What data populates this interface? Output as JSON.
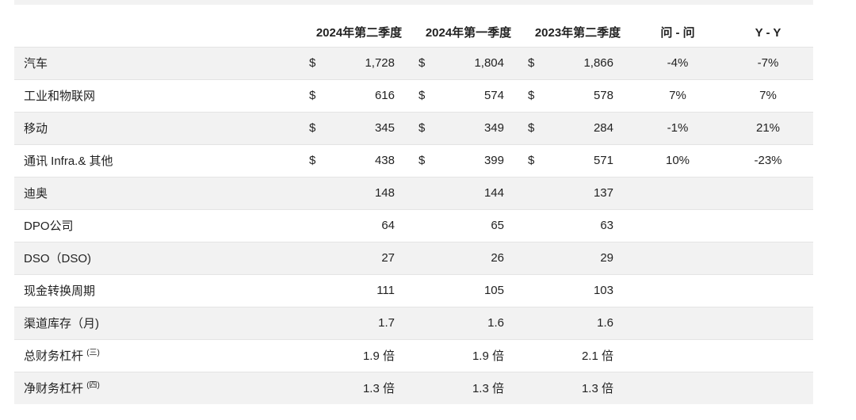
{
  "header": {
    "col_label": "",
    "q2_2024": "2024年第二季度",
    "q1_2024": "2024年第一季度",
    "q2_2023": "2023年第二季度",
    "qoq": "问 - 问",
    "yoy": "Y - Y"
  },
  "rows": [
    {
      "label": "汽车",
      "sup": "",
      "c1": "$",
      "v1": "1,728",
      "c2": "$",
      "v2": "1,804",
      "c3": "$",
      "v3": "1,866",
      "qoq": "-4%",
      "yoy": "-7%"
    },
    {
      "label": "工业和物联网",
      "sup": "",
      "c1": "$",
      "v1": "616",
      "c2": "$",
      "v2": "574",
      "c3": "$",
      "v3": "578",
      "qoq": "7%",
      "yoy": "7%"
    },
    {
      "label": "移动",
      "sup": "",
      "c1": "$",
      "v1": "345",
      "c2": "$",
      "v2": "349",
      "c3": "$",
      "v3": "284",
      "qoq": "-1%",
      "yoy": "21%"
    },
    {
      "label": "通讯 Infra.& 其他",
      "sup": "",
      "c1": "$",
      "v1": "438",
      "c2": "$",
      "v2": "399",
      "c3": "$",
      "v3": "571",
      "qoq": "10%",
      "yoy": "-23%"
    },
    {
      "label": "迪奥",
      "sup": "",
      "c1": "",
      "v1": "148",
      "c2": "",
      "v2": "144",
      "c3": "",
      "v3": "137",
      "qoq": "",
      "yoy": ""
    },
    {
      "label": "DPO公司",
      "sup": "",
      "c1": "",
      "v1": "64",
      "c2": "",
      "v2": "65",
      "c3": "",
      "v3": "63",
      "qoq": "",
      "yoy": ""
    },
    {
      "label": "DSO（DSO)",
      "sup": "",
      "c1": "",
      "v1": "27",
      "c2": "",
      "v2": "26",
      "c3": "",
      "v3": "29",
      "qoq": "",
      "yoy": ""
    },
    {
      "label": "现金转换周期",
      "sup": "",
      "c1": "",
      "v1": "111",
      "c2": "",
      "v2": "105",
      "c3": "",
      "v3": "103",
      "qoq": "",
      "yoy": ""
    },
    {
      "label": "渠道库存（月)",
      "sup": "",
      "c1": "",
      "v1": "1.7",
      "c2": "",
      "v2": "1.6",
      "c3": "",
      "v3": "1.6",
      "qoq": "",
      "yoy": ""
    },
    {
      "label": "总财务杠杆",
      "sup": "(三)",
      "c1": "",
      "v1": "1.9 倍",
      "c2": "",
      "v2": "1.9 倍",
      "c3": "",
      "v3": "2.1 倍",
      "qoq": "",
      "yoy": ""
    },
    {
      "label": "净财务杠杆",
      "sup": "(四)",
      "c1": "",
      "v1": "1.3 倍",
      "c2": "",
      "v2": "1.3 倍",
      "c3": "",
      "v3": "1.3 倍",
      "qoq": "",
      "yoy": ""
    }
  ]
}
